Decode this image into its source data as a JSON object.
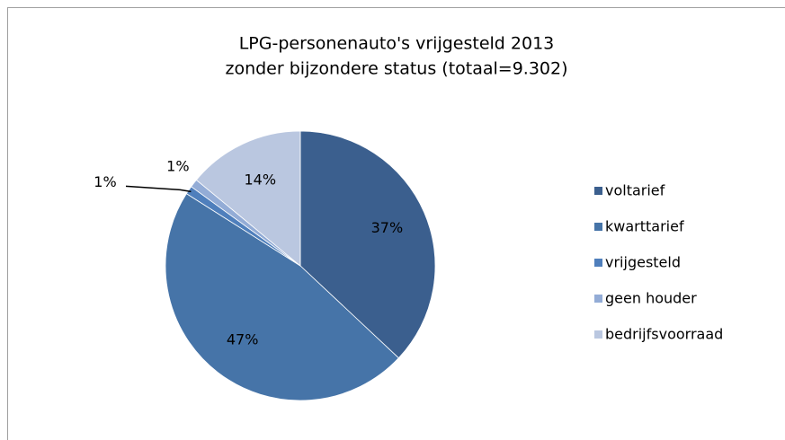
{
  "chart_data": {
    "type": "pie",
    "title": [
      "LPG-personenauto's vrijgesteld 2013",
      "zonder bijzondere status   (totaal=9.302)"
    ],
    "categories": [
      "voltarief",
      "kwarttarief",
      "vrijgesteld",
      "geen houder",
      "bedrijfsvoorraad"
    ],
    "values": [
      37,
      47,
      1,
      1,
      14
    ],
    "value_labels": [
      "37%",
      "47%",
      "1%",
      "1%",
      "14%"
    ],
    "colors": [
      "#3b5f8e",
      "#4674a8",
      "#4f7fbc",
      "#93acd6",
      "#bac7e0"
    ],
    "legend": "right"
  }
}
